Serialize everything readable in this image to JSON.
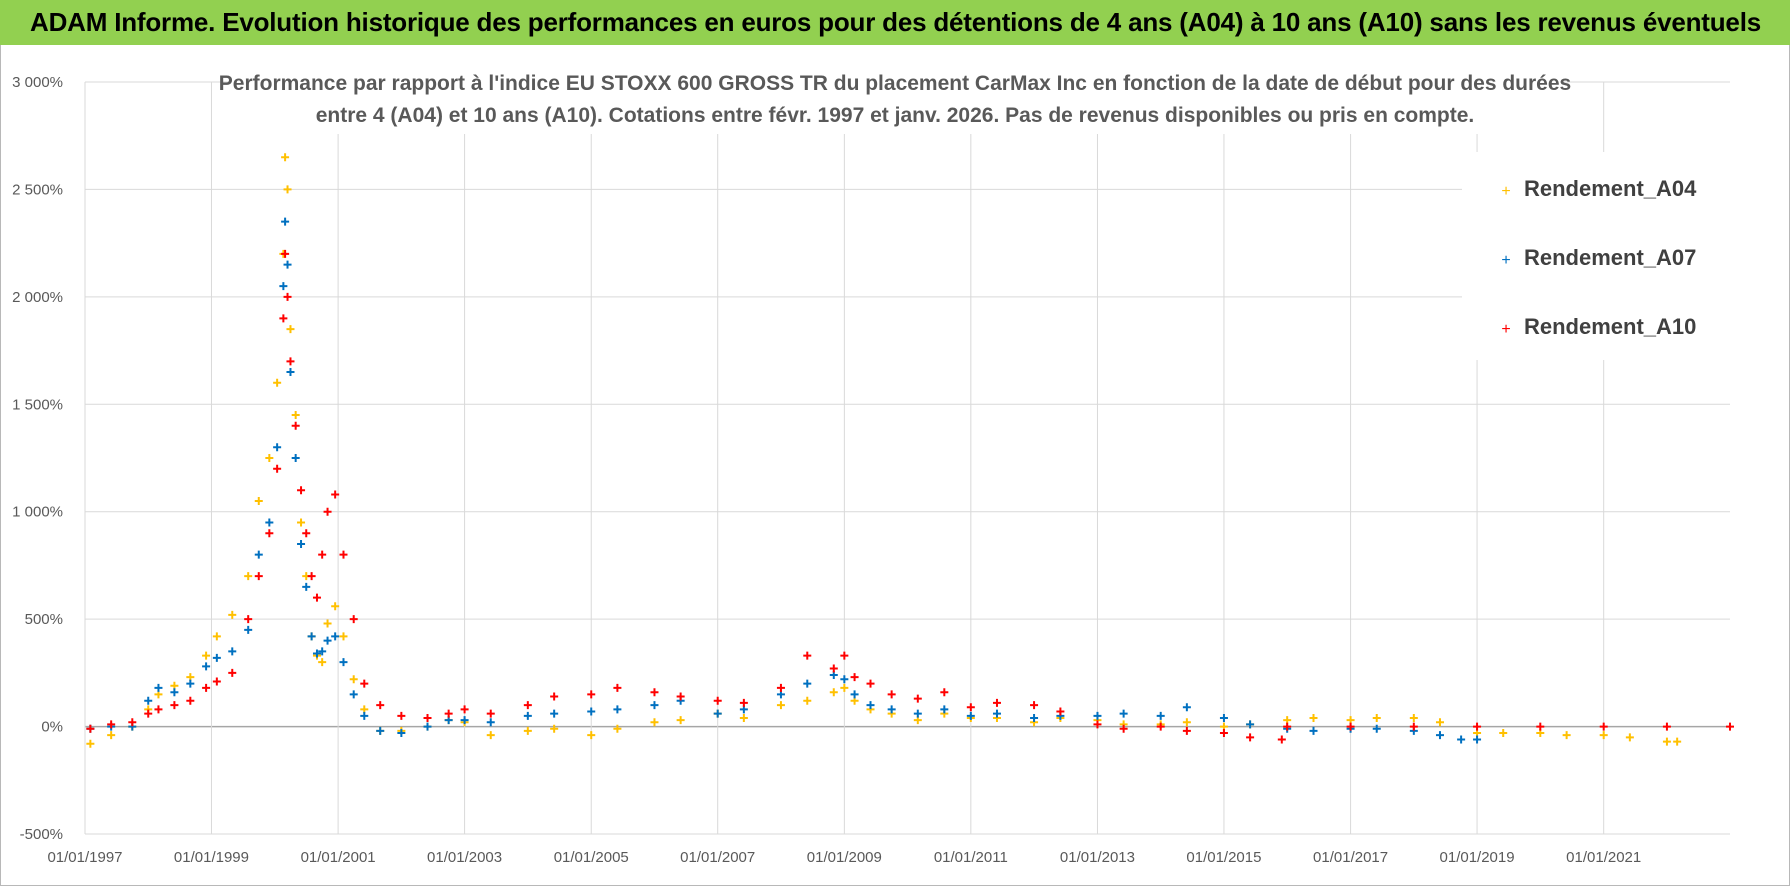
{
  "header": {
    "title": "ADAM Informe. Evolution historique des performances en euros pour des détentions de 4 ans (A04) à 10 ans (A10) sans les revenus éventuels"
  },
  "colors": {
    "header_bg": "#92d050",
    "A04": "#ffc000",
    "A07": "#0070c0",
    "A10": "#ff0000",
    "grid": "#d9d9d9",
    "zero_line": "#a6a6a6"
  },
  "chart_data": {
    "type": "scatter",
    "title_lines": [
      "Performance par rapport à l'indice EU STOXX 600 GROSS TR  du placement CarMax Inc en fonction de la date de début pour des durées",
      "entre 4 (A04) et 10 ans (A10).  Cotations entre févr. 1997 et janv. 2026. Pas de revenus disponibles ou pris en compte."
    ],
    "xlabel": "",
    "ylabel": "",
    "x_range": [
      "1997-01-01",
      "2022-12-31"
    ],
    "ylim": [
      -500,
      3000
    ],
    "y_ticks": [
      {
        "value": 3000,
        "label": "3 000%"
      },
      {
        "value": 2500,
        "label": "2 500%"
      },
      {
        "value": 2000,
        "label": "2 000%"
      },
      {
        "value": 1500,
        "label": "1 500%"
      },
      {
        "value": 1000,
        "label": "1 000%"
      },
      {
        "value": 500,
        "label": "500%"
      },
      {
        "value": 0,
        "label": "0%"
      },
      {
        "value": -500,
        "label": "-500%"
      }
    ],
    "x_ticks": [
      {
        "date": "1997-01-01",
        "label": "01/01/1997"
      },
      {
        "date": "1999-01-01",
        "label": "01/01/1999"
      },
      {
        "date": "2001-01-01",
        "label": "01/01/2001"
      },
      {
        "date": "2003-01-01",
        "label": "01/01/2003"
      },
      {
        "date": "2005-01-01",
        "label": "01/01/2005"
      },
      {
        "date": "2007-01-01",
        "label": "01/01/2007"
      },
      {
        "date": "2009-01-01",
        "label": "01/01/2009"
      },
      {
        "date": "2011-01-01",
        "label": "01/01/2011"
      },
      {
        "date": "2013-01-01",
        "label": "01/01/2013"
      },
      {
        "date": "2015-01-01",
        "label": "01/01/2015"
      },
      {
        "date": "2017-01-01",
        "label": "01/01/2017"
      },
      {
        "date": "2019-01-01",
        "label": "01/01/2019"
      },
      {
        "date": "2021-01-01",
        "label": "01/01/2021"
      }
    ],
    "grid": true,
    "marker": "+",
    "legend_position": "top-right",
    "series": [
      {
        "name": "Rendement_A04",
        "color": "#ffc000",
        "points": [
          [
            "1997-02-01",
            -80
          ],
          [
            "1997-06-01",
            -40
          ],
          [
            "1997-10-01",
            0
          ],
          [
            "1998-01-01",
            80
          ],
          [
            "1998-03-01",
            150
          ],
          [
            "1998-06-01",
            190
          ],
          [
            "1998-09-01",
            230
          ],
          [
            "1998-12-01",
            330
          ],
          [
            "1999-02-01",
            420
          ],
          [
            "1999-05-01",
            520
          ],
          [
            "1999-08-01",
            700
          ],
          [
            "1999-10-01",
            1050
          ],
          [
            "1999-12-01",
            1250
          ],
          [
            "2000-01-15",
            1600
          ],
          [
            "2000-02-20",
            2200
          ],
          [
            "2000-03-01",
            2650
          ],
          [
            "2000-03-15",
            2500
          ],
          [
            "2000-04-01",
            1850
          ],
          [
            "2000-05-01",
            1450
          ],
          [
            "2000-06-01",
            950
          ],
          [
            "2000-07-01",
            700
          ],
          [
            "2000-08-01",
            420
          ],
          [
            "2000-09-01",
            330
          ],
          [
            "2000-10-01",
            300
          ],
          [
            "2000-11-01",
            480
          ],
          [
            "2000-12-15",
            560
          ],
          [
            "2001-02-01",
            420
          ],
          [
            "2001-04-01",
            220
          ],
          [
            "2001-06-01",
            80
          ],
          [
            "2001-09-01",
            -20
          ],
          [
            "2002-01-01",
            -20
          ],
          [
            "2002-06-01",
            0
          ],
          [
            "2002-10-01",
            30
          ],
          [
            "2003-01-01",
            20
          ],
          [
            "2003-06-01",
            -40
          ],
          [
            "2004-01-01",
            -20
          ],
          [
            "2004-06-01",
            -10
          ],
          [
            "2005-01-01",
            -40
          ],
          [
            "2005-06-01",
            -10
          ],
          [
            "2006-01-01",
            20
          ],
          [
            "2006-06-01",
            30
          ],
          [
            "2007-01-01",
            60
          ],
          [
            "2007-06-01",
            40
          ],
          [
            "2008-01-01",
            100
          ],
          [
            "2008-06-01",
            120
          ],
          [
            "2008-11-01",
            160
          ],
          [
            "2009-01-01",
            180
          ],
          [
            "2009-03-01",
            120
          ],
          [
            "2009-06-01",
            80
          ],
          [
            "2009-10-01",
            60
          ],
          [
            "2010-03-01",
            30
          ],
          [
            "2010-08-01",
            60
          ],
          [
            "2011-01-01",
            40
          ],
          [
            "2011-06-01",
            40
          ],
          [
            "2012-01-01",
            20
          ],
          [
            "2012-06-01",
            40
          ],
          [
            "2013-01-01",
            30
          ],
          [
            "2013-06-01",
            10
          ],
          [
            "2014-01-01",
            10
          ],
          [
            "2014-06-01",
            20
          ],
          [
            "2015-01-01",
            0
          ],
          [
            "2015-06-01",
            10
          ],
          [
            "2016-01-01",
            30
          ],
          [
            "2016-06-01",
            40
          ],
          [
            "2017-01-01",
            30
          ],
          [
            "2017-06-01",
            40
          ],
          [
            "2018-01-01",
            40
          ],
          [
            "2018-06-01",
            20
          ],
          [
            "2019-01-01",
            -30
          ],
          [
            "2019-06-01",
            -30
          ],
          [
            "2020-01-01",
            -30
          ],
          [
            "2020-06-01",
            -40
          ],
          [
            "2021-01-01",
            -40
          ],
          [
            "2021-06-01",
            -50
          ],
          [
            "2022-01-01",
            -70
          ],
          [
            "2022-03-01",
            -70
          ]
        ]
      },
      {
        "name": "Rendement_A07",
        "color": "#0070c0",
        "points": [
          [
            "1997-02-01",
            -10
          ],
          [
            "1997-06-01",
            0
          ],
          [
            "1997-10-01",
            0
          ],
          [
            "1998-01-01",
            120
          ],
          [
            "1998-03-01",
            180
          ],
          [
            "1998-06-01",
            160
          ],
          [
            "1998-09-01",
            200
          ],
          [
            "1998-12-01",
            280
          ],
          [
            "1999-02-01",
            320
          ],
          [
            "1999-05-01",
            350
          ],
          [
            "1999-08-01",
            450
          ],
          [
            "1999-10-01",
            800
          ],
          [
            "1999-12-01",
            950
          ],
          [
            "2000-01-15",
            1300
          ],
          [
            "2000-02-20",
            2050
          ],
          [
            "2000-03-01",
            2350
          ],
          [
            "2000-03-15",
            2150
          ],
          [
            "2000-04-01",
            1650
          ],
          [
            "2000-05-01",
            1250
          ],
          [
            "2000-06-01",
            850
          ],
          [
            "2000-07-01",
            650
          ],
          [
            "2000-08-01",
            420
          ],
          [
            "2000-09-01",
            340
          ],
          [
            "2000-10-01",
            350
          ],
          [
            "2000-11-01",
            400
          ],
          [
            "2000-12-15",
            420
          ],
          [
            "2001-02-01",
            300
          ],
          [
            "2001-04-01",
            150
          ],
          [
            "2001-06-01",
            50
          ],
          [
            "2001-09-01",
            -20
          ],
          [
            "2002-01-01",
            -30
          ],
          [
            "2002-06-01",
            0
          ],
          [
            "2002-10-01",
            30
          ],
          [
            "2003-01-01",
            30
          ],
          [
            "2003-06-01",
            20
          ],
          [
            "2004-01-01",
            50
          ],
          [
            "2004-06-01",
            60
          ],
          [
            "2005-01-01",
            70
          ],
          [
            "2005-06-01",
            80
          ],
          [
            "2006-01-01",
            100
          ],
          [
            "2006-06-01",
            120
          ],
          [
            "2007-01-01",
            60
          ],
          [
            "2007-06-01",
            80
          ],
          [
            "2008-01-01",
            150
          ],
          [
            "2008-06-01",
            200
          ],
          [
            "2008-11-01",
            240
          ],
          [
            "2009-01-01",
            220
          ],
          [
            "2009-03-01",
            150
          ],
          [
            "2009-06-01",
            100
          ],
          [
            "2009-10-01",
            80
          ],
          [
            "2010-03-01",
            60
          ],
          [
            "2010-08-01",
            80
          ],
          [
            "2011-01-01",
            50
          ],
          [
            "2011-06-01",
            60
          ],
          [
            "2012-01-01",
            40
          ],
          [
            "2012-06-01",
            50
          ],
          [
            "2013-01-01",
            50
          ],
          [
            "2013-06-01",
            60
          ],
          [
            "2014-01-01",
            50
          ],
          [
            "2014-06-01",
            90
          ],
          [
            "2015-01-01",
            40
          ],
          [
            "2015-06-01",
            10
          ],
          [
            "2016-01-01",
            -10
          ],
          [
            "2016-06-01",
            -20
          ],
          [
            "2017-01-01",
            -10
          ],
          [
            "2017-06-01",
            -10
          ],
          [
            "2018-01-01",
            -20
          ],
          [
            "2018-06-01",
            -40
          ],
          [
            "2018-10-01",
            -60
          ],
          [
            "2019-01-01",
            -60
          ]
        ]
      },
      {
        "name": "Rendement_A10",
        "color": "#ff0000",
        "points": [
          [
            "1997-02-01",
            -10
          ],
          [
            "1997-06-01",
            10
          ],
          [
            "1997-10-01",
            20
          ],
          [
            "1998-01-01",
            60
          ],
          [
            "1998-03-01",
            80
          ],
          [
            "1998-06-01",
            100
          ],
          [
            "1998-09-01",
            120
          ],
          [
            "1998-12-01",
            180
          ],
          [
            "1999-02-01",
            210
          ],
          [
            "1999-05-01",
            250
          ],
          [
            "1999-08-01",
            500
          ],
          [
            "1999-10-01",
            700
          ],
          [
            "1999-12-01",
            900
          ],
          [
            "2000-01-15",
            1200
          ],
          [
            "2000-02-20",
            1900
          ],
          [
            "2000-03-01",
            2200
          ],
          [
            "2000-03-15",
            2000
          ],
          [
            "2000-04-01",
            1700
          ],
          [
            "2000-05-01",
            1400
          ],
          [
            "2000-06-01",
            1100
          ],
          [
            "2000-07-01",
            900
          ],
          [
            "2000-08-01",
            700
          ],
          [
            "2000-09-01",
            600
          ],
          [
            "2000-10-01",
            800
          ],
          [
            "2000-11-01",
            1000
          ],
          [
            "2000-12-15",
            1080
          ],
          [
            "2001-02-01",
            800
          ],
          [
            "2001-04-01",
            500
          ],
          [
            "2001-06-01",
            200
          ],
          [
            "2001-09-01",
            100
          ],
          [
            "2002-01-01",
            50
          ],
          [
            "2002-06-01",
            40
          ],
          [
            "2002-10-01",
            60
          ],
          [
            "2003-01-01",
            80
          ],
          [
            "2003-06-01",
            60
          ],
          [
            "2004-01-01",
            100
          ],
          [
            "2004-06-01",
            140
          ],
          [
            "2005-01-01",
            150
          ],
          [
            "2005-06-01",
            180
          ],
          [
            "2006-01-01",
            160
          ],
          [
            "2006-06-01",
            140
          ],
          [
            "2007-01-01",
            120
          ],
          [
            "2007-06-01",
            110
          ],
          [
            "2008-01-01",
            180
          ],
          [
            "2008-06-01",
            330
          ],
          [
            "2008-11-01",
            270
          ],
          [
            "2009-01-01",
            330
          ],
          [
            "2009-03-01",
            230
          ],
          [
            "2009-06-01",
            200
          ],
          [
            "2009-10-01",
            150
          ],
          [
            "2010-03-01",
            130
          ],
          [
            "2010-08-01",
            160
          ],
          [
            "2011-01-01",
            90
          ],
          [
            "2011-06-01",
            110
          ],
          [
            "2012-01-01",
            100
          ],
          [
            "2012-06-01",
            70
          ],
          [
            "2013-01-01",
            10
          ],
          [
            "2013-06-01",
            -10
          ],
          [
            "2014-01-01",
            0
          ],
          [
            "2014-06-01",
            -20
          ],
          [
            "2015-01-01",
            -30
          ],
          [
            "2015-06-01",
            -50
          ],
          [
            "2015-12-01",
            -60
          ],
          [
            "2016-01-01",
            0
          ],
          [
            "2017-01-01",
            0
          ],
          [
            "2018-01-01",
            0
          ],
          [
            "2019-01-01",
            0
          ],
          [
            "2020-01-01",
            0
          ],
          [
            "2021-01-01",
            0
          ],
          [
            "2022-01-01",
            0
          ],
          [
            "2022-12-31",
            0
          ]
        ]
      }
    ]
  }
}
